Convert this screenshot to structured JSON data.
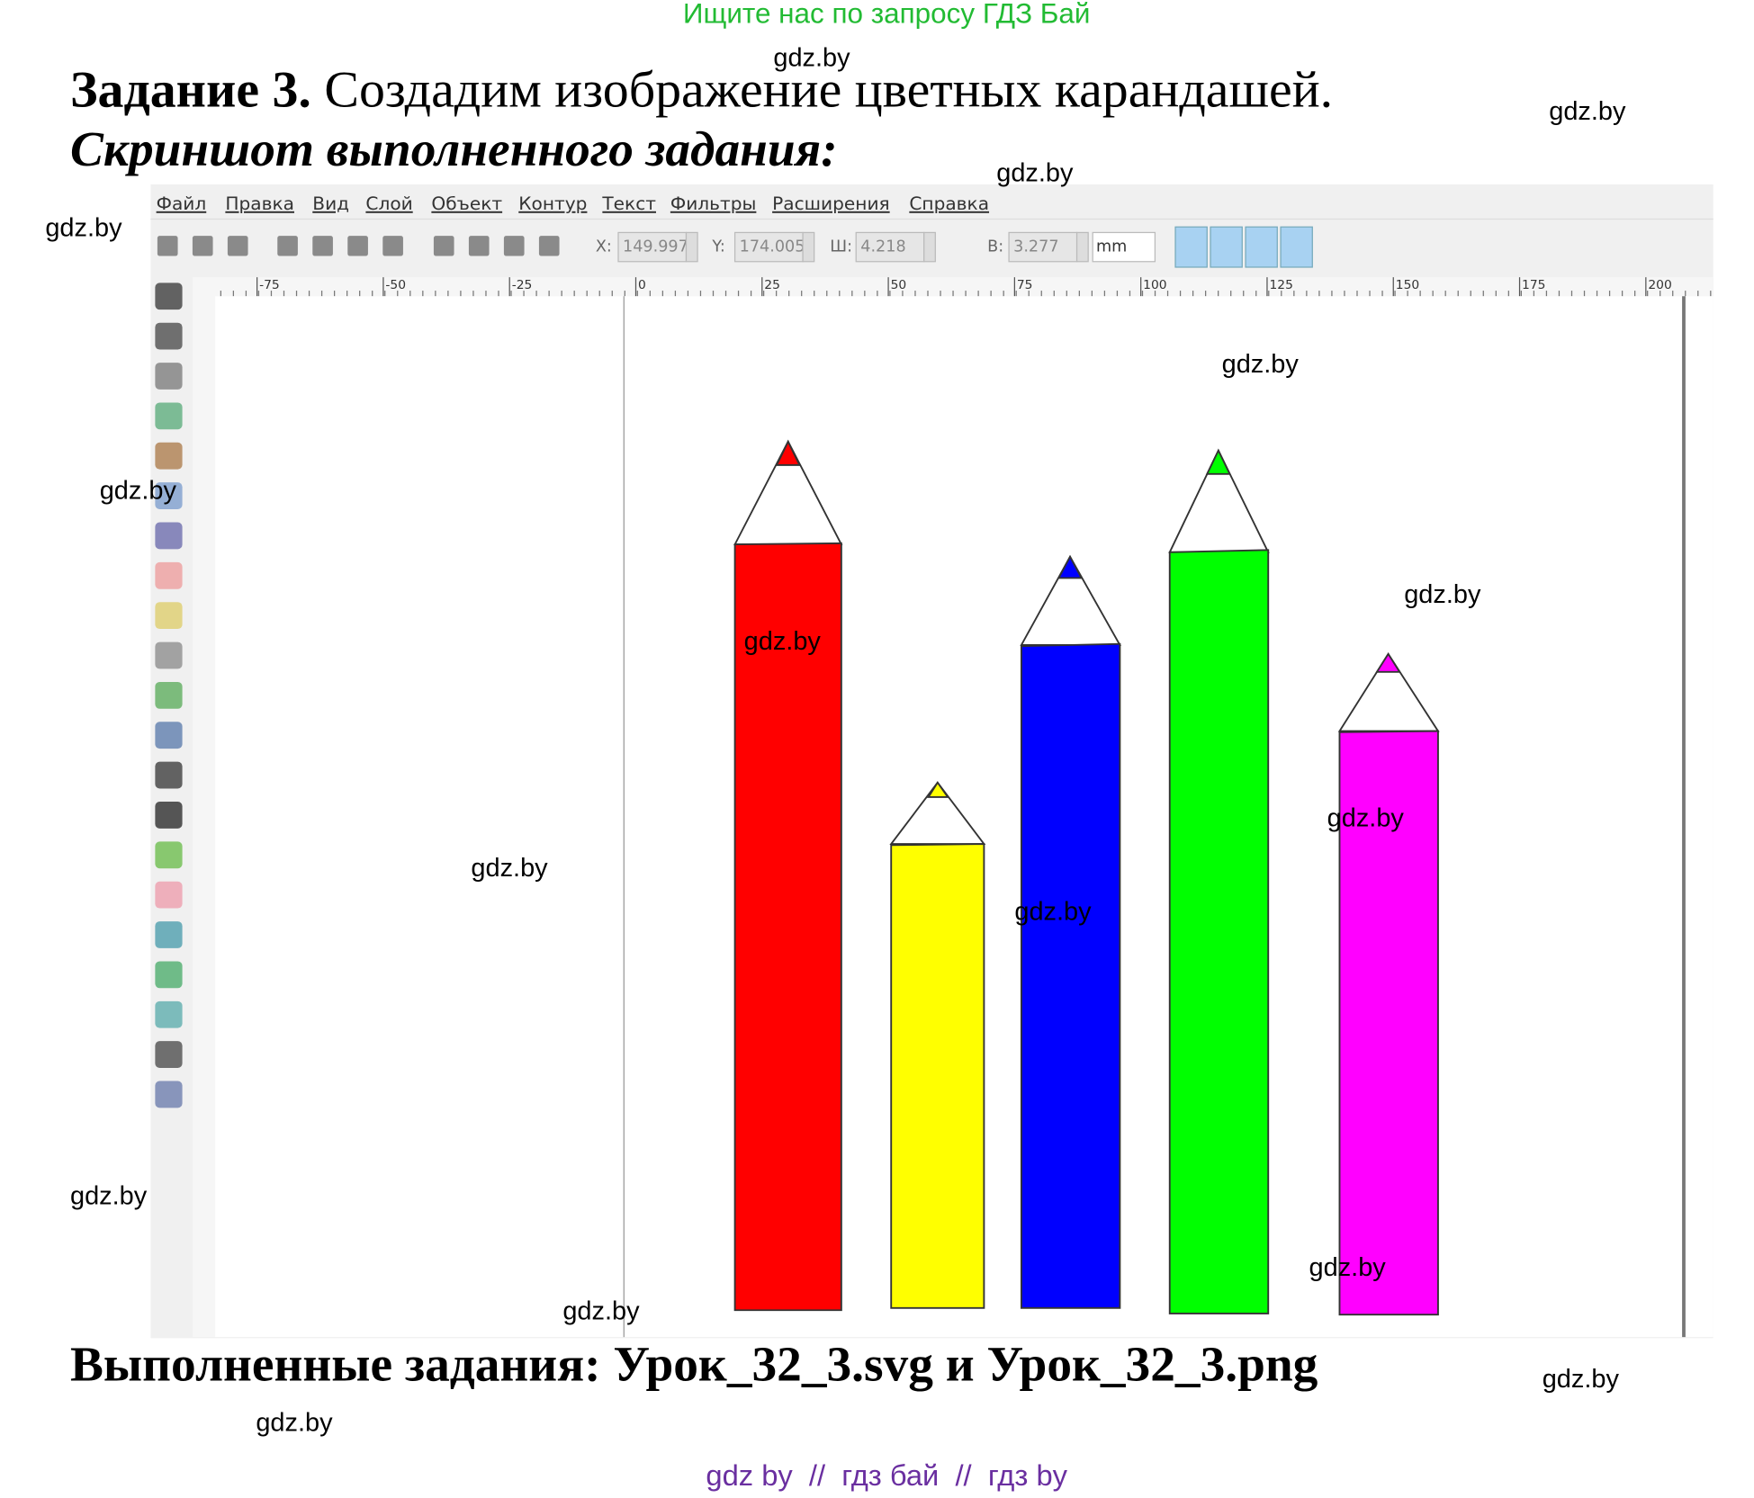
{
  "banner": "Ищите нас по запросу ГДЗ Бай",
  "task": {
    "label": "Задание 3.",
    "text": "Создадим изображение цветных карандашей."
  },
  "subtitle": "Скриншот выполненного задания:",
  "menu": [
    "Файл",
    "Правка",
    "Вид",
    "Слой",
    "Объект",
    "Контур",
    "Текст",
    "Фильтры",
    "Расширения",
    "Справка"
  ],
  "toolbar": {
    "x_label": "X:",
    "x": "149.997",
    "y_label": "Y:",
    "y": "174.005",
    "w_label": "Ш:",
    "w": "4.218",
    "h_label": "В:",
    "h": "3.277",
    "unit": "mm"
  },
  "ruler": [
    "-75",
    "-50",
    "-25",
    "0",
    "25",
    "50",
    "75",
    "100",
    "125",
    "150",
    "175",
    "200"
  ],
  "result": "Выполненные задания: Урок_32_3.svg и Урок_32_3.png",
  "watermarks": [
    "gdz.by",
    "gdz.by",
    "gdz.by",
    "gdz.by",
    "gdz.by",
    "gdz.by",
    "gdz.by",
    "gdz.by",
    "gdz.by",
    "gdz.by",
    "gdz.by",
    "gdz.by",
    "gdz.by",
    "gdz.by",
    "gdz.by",
    "gdz.by"
  ],
  "footer": "gdz by  //  гдз бай  //  гдз by"
}
